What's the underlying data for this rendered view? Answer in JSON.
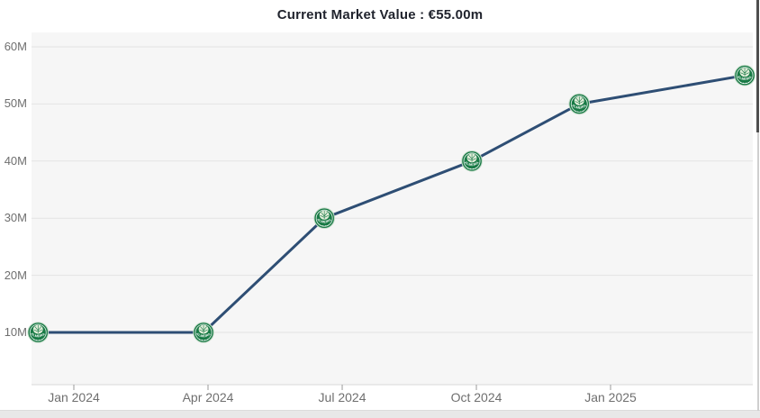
{
  "chart_data": {
    "type": "line",
    "title": "Current Market Value : €55.00m",
    "current_value": "€55.00m",
    "x_axis": {
      "tick_labels": [
        "Jan 2024",
        "Apr 2024",
        "Jul 2024",
        "Oct 2024",
        "Jan 2025"
      ],
      "tick_month_offsets": [
        0,
        3,
        6,
        9,
        12
      ]
    },
    "y_axis": {
      "tick_labels": [
        "10M",
        "20M",
        "30M",
        "40M",
        "50M",
        "60M"
      ],
      "tick_values": [
        10,
        20,
        30,
        40,
        50,
        60
      ],
      "unit": "EUR millions",
      "ylim": [
        0,
        62
      ]
    },
    "grid": "horizontal",
    "legend": "none",
    "series": [
      {
        "name": "Market value",
        "marker": "palmeiras-club-badge",
        "marker_text": "PALMEIRAS",
        "points": [
          {
            "date": "Dec 2023",
            "month_offset": -0.8,
            "value_m": 10
          },
          {
            "date": "Mar 2024",
            "month_offset": 2.9,
            "value_m": 10
          },
          {
            "date": "Jun 2024",
            "month_offset": 5.6,
            "value_m": 30
          },
          {
            "date": "Oct 2024",
            "month_offset": 8.9,
            "value_m": 40
          },
          {
            "date": "Dec 2024",
            "month_offset": 11.3,
            "value_m": 50
          },
          {
            "date": "Apr 2025",
            "month_offset": 15.0,
            "value_m": 55
          }
        ]
      }
    ],
    "colors": {
      "line": "#2e4e74",
      "plot_background": "#f6f6f6",
      "gridline": "#e3e3e3",
      "axis_line": "#d8d8d8",
      "tick_mark": "#9a9a9a",
      "badge_green": "#187a45",
      "badge_crest": "#e2edda",
      "axis_text": "#6f6f6f",
      "title_text": "#21242e"
    }
  }
}
